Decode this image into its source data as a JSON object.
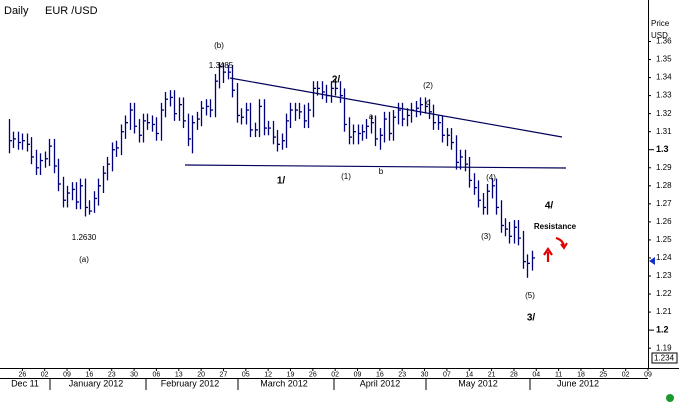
{
  "chart_data": {
    "type": "hlc",
    "title": "Daily",
    "subtitle": "EUR /USD",
    "y_axis_label": [
      "Price",
      "USD"
    ],
    "cursor_price_label": "1.234",
    "color": "#00007a",
    "x": [
      "2011-12-21",
      "2011-12-22",
      "2011-12-23",
      "2011-12-26",
      "2011-12-27",
      "2011-12-28",
      "2011-12-29",
      "2011-12-30",
      "2012-01-02",
      "2012-01-03",
      "2012-01-04",
      "2012-01-05",
      "2012-01-06",
      "2012-01-09",
      "2012-01-10",
      "2012-01-11",
      "2012-01-12",
      "2012-01-13",
      "2012-01-16",
      "2012-01-17",
      "2012-01-18",
      "2012-01-19",
      "2012-01-20",
      "2012-01-23",
      "2012-01-24",
      "2012-01-25",
      "2012-01-26",
      "2012-01-27",
      "2012-01-30",
      "2012-01-31",
      "2012-02-01",
      "2012-02-02",
      "2012-02-03",
      "2012-02-06",
      "2012-02-07",
      "2012-02-08",
      "2012-02-09",
      "2012-02-10",
      "2012-02-13",
      "2012-02-14",
      "2012-02-15",
      "2012-02-16",
      "2012-02-17",
      "2012-02-20",
      "2012-02-21",
      "2012-02-22",
      "2012-02-23",
      "2012-02-24",
      "2012-02-27",
      "2012-02-28",
      "2012-02-29",
      "2012-03-01",
      "2012-03-02",
      "2012-03-05",
      "2012-03-06",
      "2012-03-07",
      "2012-03-08",
      "2012-03-09",
      "2012-03-12",
      "2012-03-13",
      "2012-03-14",
      "2012-03-15",
      "2012-03-16",
      "2012-03-19",
      "2012-03-20",
      "2012-03-21",
      "2012-03-22",
      "2012-03-23",
      "2012-03-26",
      "2012-03-27",
      "2012-03-28",
      "2012-03-29",
      "2012-03-30",
      "2012-04-02",
      "2012-04-03",
      "2012-04-04",
      "2012-04-05",
      "2012-04-06",
      "2012-04-09",
      "2012-04-10",
      "2012-04-11",
      "2012-04-12",
      "2012-04-13",
      "2012-04-16",
      "2012-04-17",
      "2012-04-18",
      "2012-04-19",
      "2012-04-20",
      "2012-04-23",
      "2012-04-24",
      "2012-04-25",
      "2012-04-26",
      "2012-04-27",
      "2012-04-30",
      "2012-05-01",
      "2012-05-02",
      "2012-05-03",
      "2012-05-04",
      "2012-05-07",
      "2012-05-08",
      "2012-05-09",
      "2012-05-10",
      "2012-05-11",
      "2012-05-14",
      "2012-05-15",
      "2012-05-16",
      "2012-05-17",
      "2012-05-18",
      "2012-05-21",
      "2012-05-22",
      "2012-05-23",
      "2012-05-24",
      "2012-05-25",
      "2012-05-28",
      "2012-05-29",
      "2012-05-30",
      "2012-05-31",
      "2012-06-01"
    ],
    "high": [
      1.317,
      1.31,
      1.31,
      1.309,
      1.309,
      1.307,
      1.3,
      1.298,
      1.299,
      1.306,
      1.306,
      1.295,
      1.285,
      1.28,
      1.282,
      1.282,
      1.284,
      1.284,
      1.272,
      1.277,
      1.284,
      1.291,
      1.296,
      1.304,
      1.305,
      1.314,
      1.319,
      1.326,
      1.326,
      1.317,
      1.32,
      1.32,
      1.319,
      1.318,
      1.326,
      1.332,
      1.333,
      1.333,
      1.329,
      1.329,
      1.32,
      1.319,
      1.321,
      1.327,
      1.328,
      1.328,
      1.342,
      1.3485,
      1.348,
      1.347,
      1.347,
      1.337,
      1.323,
      1.326,
      1.326,
      1.315,
      1.328,
      1.328,
      1.316,
      1.316,
      1.311,
      1.309,
      1.32,
      1.326,
      1.326,
      1.326,
      1.325,
      1.326,
      1.338,
      1.338,
      1.338,
      1.336,
      1.338,
      1.339,
      1.338,
      1.334,
      1.318,
      1.314,
      1.314,
      1.314,
      1.317,
      1.319,
      1.319,
      1.312,
      1.321,
      1.321,
      1.322,
      1.326,
      1.326,
      1.323,
      1.326,
      1.327,
      1.329,
      1.329,
      1.328,
      1.325,
      1.319,
      1.319,
      1.312,
      1.312,
      1.308,
      1.3,
      1.3,
      1.296,
      1.287,
      1.283,
      1.276,
      1.281,
      1.284,
      1.284,
      1.272,
      1.262,
      1.26,
      1.261,
      1.261,
      1.255,
      1.242,
      1.244
    ],
    "low": [
      1.298,
      1.301,
      1.3,
      1.3,
      1.299,
      1.292,
      1.286,
      1.286,
      1.29,
      1.291,
      1.287,
      1.277,
      1.268,
      1.268,
      1.272,
      1.267,
      1.267,
      1.263,
      1.264,
      1.265,
      1.269,
      1.276,
      1.283,
      1.288,
      1.296,
      1.297,
      1.306,
      1.311,
      1.309,
      1.304,
      1.304,
      1.311,
      1.31,
      1.305,
      1.305,
      1.318,
      1.324,
      1.316,
      1.316,
      1.312,
      1.302,
      1.298,
      1.311,
      1.313,
      1.319,
      1.318,
      1.318,
      1.334,
      1.337,
      1.339,
      1.329,
      1.315,
      1.314,
      1.314,
      1.307,
      1.307,
      1.307,
      1.308,
      1.308,
      1.303,
      1.299,
      1.3,
      1.301,
      1.312,
      1.316,
      1.317,
      1.312,
      1.312,
      1.318,
      1.33,
      1.328,
      1.326,
      1.326,
      1.33,
      1.326,
      1.31,
      1.303,
      1.303,
      1.303,
      1.305,
      1.306,
      1.309,
      1.302,
      1.3,
      1.304,
      1.305,
      1.305,
      1.314,
      1.313,
      1.313,
      1.315,
      1.318,
      1.319,
      1.32,
      1.317,
      1.311,
      1.311,
      1.304,
      1.302,
      1.3,
      1.289,
      1.289,
      1.288,
      1.279,
      1.275,
      1.268,
      1.264,
      1.264,
      1.273,
      1.264,
      1.254,
      1.252,
      1.248,
      1.248,
      1.247,
      1.234,
      1.229,
      1.233
    ],
    "close": [
      1.305,
      1.306,
      1.304,
      1.305,
      1.303,
      1.296,
      1.29,
      1.294,
      1.295,
      1.302,
      1.291,
      1.281,
      1.272,
      1.276,
      1.278,
      1.271,
      1.28,
      1.268,
      1.266,
      1.273,
      1.28,
      1.287,
      1.292,
      1.3,
      1.301,
      1.31,
      1.315,
      1.322,
      1.313,
      1.308,
      1.316,
      1.315,
      1.314,
      1.309,
      1.322,
      1.328,
      1.329,
      1.32,
      1.325,
      1.316,
      1.306,
      1.315,
      1.317,
      1.323,
      1.324,
      1.322,
      1.338,
      1.346,
      1.343,
      1.343,
      1.333,
      1.319,
      1.318,
      1.322,
      1.311,
      1.311,
      1.324,
      1.312,
      1.312,
      1.307,
      1.303,
      1.305,
      1.316,
      1.322,
      1.322,
      1.321,
      1.316,
      1.322,
      1.334,
      1.334,
      1.332,
      1.33,
      1.334,
      1.334,
      1.33,
      1.314,
      1.307,
      1.31,
      1.309,
      1.31,
      1.313,
      1.315,
      1.306,
      1.308,
      1.317,
      1.309,
      1.318,
      1.322,
      1.317,
      1.319,
      1.322,
      1.323,
      1.325,
      1.324,
      1.321,
      1.315,
      1.315,
      1.308,
      1.308,
      1.304,
      1.293,
      1.296,
      1.292,
      1.283,
      1.279,
      1.272,
      1.268,
      1.277,
      1.28,
      1.268,
      1.258,
      1.256,
      1.252,
      1.257,
      1.251,
      1.238,
      1.237,
      1.24
    ],
    "xlim": [
      "2011-12-19",
      "2012-07-09"
    ],
    "xticks": [
      {
        "value": "2011-12-26",
        "label": "26"
      },
      {
        "value": "2012-01-02",
        "label": "02"
      },
      {
        "value": "2012-01-09",
        "label": "09"
      },
      {
        "value": "2012-01-16",
        "label": "16"
      },
      {
        "value": "2012-01-23",
        "label": "23"
      },
      {
        "value": "2012-01-30",
        "label": "30"
      },
      {
        "value": "2012-02-06",
        "label": "06"
      },
      {
        "value": "2012-02-13",
        "label": "13"
      },
      {
        "value": "2012-02-20",
        "label": "20"
      },
      {
        "value": "2012-02-27",
        "label": "27"
      },
      {
        "value": "2012-03-05",
        "label": "05"
      },
      {
        "value": "2012-03-12",
        "label": "12"
      },
      {
        "value": "2012-03-19",
        "label": "19"
      },
      {
        "value": "2012-03-26",
        "label": "26"
      },
      {
        "value": "2012-04-02",
        "label": "02"
      },
      {
        "value": "2012-04-09",
        "label": "09"
      },
      {
        "value": "2012-04-16",
        "label": "16"
      },
      {
        "value": "2012-04-23",
        "label": "23"
      },
      {
        "value": "2012-04-30",
        "label": "30"
      },
      {
        "value": "2012-05-07",
        "label": "07"
      },
      {
        "value": "2012-05-14",
        "label": "14"
      },
      {
        "value": "2012-05-21",
        "label": "21"
      },
      {
        "value": "2012-05-28",
        "label": "28"
      },
      {
        "value": "2012-06-04",
        "label": "04"
      },
      {
        "value": "2012-06-11",
        "label": "11"
      },
      {
        "value": "2012-06-18",
        "label": "18"
      },
      {
        "value": "2012-06-25",
        "label": "25"
      },
      {
        "value": "2012-07-02",
        "label": "02"
      },
      {
        "value": "2012-07-09",
        "label": "09"
      }
    ],
    "month_labels": [
      "Dec 11",
      "January 2012",
      "February 2012",
      "March 2012",
      "April 2012",
      "May 2012",
      "June 2012"
    ],
    "ylim": [
      1.179,
      1.383
    ],
    "yticks": [
      1.36,
      1.35,
      1.34,
      1.33,
      1.32,
      1.31,
      1.3,
      1.29,
      1.28,
      1.27,
      1.26,
      1.25,
      1.24,
      1.23,
      1.22,
      1.21,
      1.2,
      1.19
    ],
    "major_yticks": [
      1.3,
      1.2
    ],
    "annotations": [
      "(b)",
      "1.3485",
      "2/",
      "(2)",
      "c",
      "a",
      "1/",
      "(1)",
      "b",
      "(4)",
      "4/",
      "Resistance",
      "(3)",
      "(5)",
      "3/",
      "1.2630",
      "(a)"
    ]
  }
}
